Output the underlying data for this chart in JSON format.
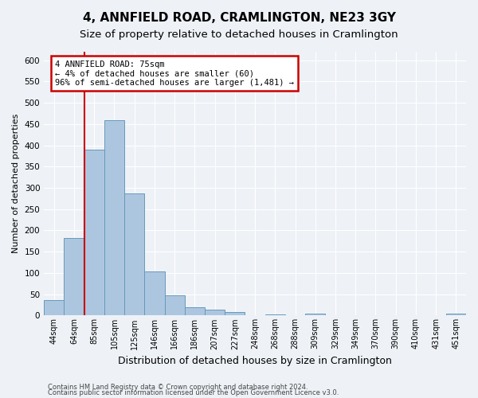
{
  "title": "4, ANNFIELD ROAD, CRAMLINGTON, NE23 3GY",
  "subtitle": "Size of property relative to detached houses in Cramlington",
  "xlabel": "Distribution of detached houses by size in Cramlington",
  "ylabel": "Number of detached properties",
  "bar_labels": [
    "44sqm",
    "64sqm",
    "85sqm",
    "105sqm",
    "125sqm",
    "146sqm",
    "166sqm",
    "186sqm",
    "207sqm",
    "227sqm",
    "248sqm",
    "268sqm",
    "288sqm",
    "309sqm",
    "329sqm",
    "349sqm",
    "370sqm",
    "390sqm",
    "410sqm",
    "431sqm",
    "451sqm"
  ],
  "bar_values": [
    37,
    182,
    390,
    460,
    287,
    103,
    48,
    20,
    14,
    8,
    0,
    3,
    0,
    5,
    0,
    0,
    0,
    0,
    0,
    0,
    5
  ],
  "bar_color": "#adc6e0",
  "bar_edge_color": "#6699bb",
  "annotation_text": "4 ANNFIELD ROAD: 75sqm\n← 4% of detached houses are smaller (60)\n96% of semi-detached houses are larger (1,481) →",
  "annotation_box_color": "#ffffff",
  "annotation_box_edge_color": "#cc0000",
  "ylim": [
    0,
    620
  ],
  "yticks": [
    0,
    50,
    100,
    150,
    200,
    250,
    300,
    350,
    400,
    450,
    500,
    550,
    600
  ],
  "vline_color": "#cc0000",
  "vline_x": 1.5,
  "footer1": "Contains HM Land Registry data © Crown copyright and database right 2024.",
  "footer2": "Contains public sector information licensed under the Open Government Licence v3.0.",
  "bg_color": "#eef2f7",
  "grid_color": "#ffffff",
  "title_fontsize": 11,
  "subtitle_fontsize": 9.5,
  "ylabel_fontsize": 8,
  "xlabel_fontsize": 9,
  "annot_fontsize": 7.5,
  "tick_fontsize": 7,
  "footer_fontsize": 6
}
